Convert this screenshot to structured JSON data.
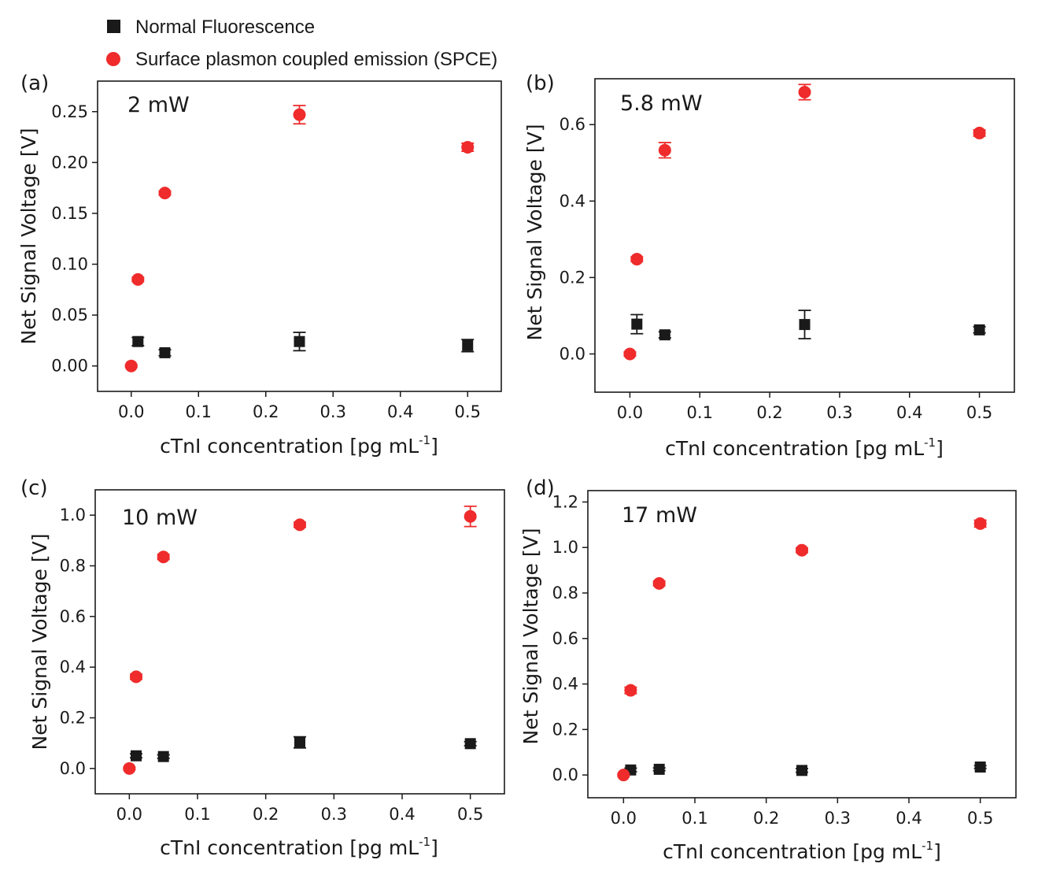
{
  "legend": {
    "items": [
      {
        "label": "Normal Fluorescence",
        "marker": "square",
        "color": "#1a1a1a"
      },
      {
        "label": "Surface plasmon coupled emission (SPCE)",
        "marker": "circle",
        "color": "#ef2b2b"
      }
    ]
  },
  "colors": {
    "normal": "#1a1a1a",
    "spce": "#ef2b2b"
  },
  "chart_data": [
    {
      "type": "scatter",
      "panel": "(a)",
      "annotation": "2 mW",
      "xlabel": "cTnI concentration [pg mL",
      "xlabel_sup": "-1",
      "xlabel_close": "]",
      "ylabel": "Net Signal Voltage [V]",
      "xlim": [
        -0.05,
        0.55
      ],
      "ylim": [
        -0.025,
        0.28
      ],
      "xticks": [
        0.0,
        0.1,
        0.2,
        0.3,
        0.4,
        0.5
      ],
      "xtick_labels": [
        "0.0",
        "0.1",
        "0.2",
        "0.3",
        "0.4",
        "0.5"
      ],
      "yticks": [
        0.0,
        0.05,
        0.1,
        0.15,
        0.2,
        0.25
      ],
      "ytick_labels": [
        "0.00",
        "0.05",
        "0.10",
        "0.15",
        "0.20",
        "0.25"
      ],
      "series": [
        {
          "name": "Normal Fluorescence",
          "x": [
            0.01,
            0.05,
            0.25,
            0.5
          ],
          "y": [
            0.024,
            0.013,
            0.024,
            0.02
          ],
          "err": [
            0.004,
            0.003,
            0.009,
            0.006
          ]
        },
        {
          "name": "Surface plasmon coupled emission (SPCE)",
          "x": [
            0.0,
            0.01,
            0.05,
            0.25,
            0.5
          ],
          "y": [
            0.0,
            0.085,
            0.17,
            0.247,
            0.215
          ],
          "err": [
            0.001,
            0.002,
            0.002,
            0.009,
            0.004
          ]
        }
      ]
    },
    {
      "type": "scatter",
      "panel": "(b)",
      "annotation": "5.8 mW",
      "xlabel": "cTnI concentration [pg mL",
      "xlabel_sup": "-1",
      "xlabel_close": "]",
      "ylabel": "Net Signal Voltage [V]",
      "xlim": [
        -0.05,
        0.55
      ],
      "ylim": [
        -0.1,
        0.72
      ],
      "xticks": [
        0.0,
        0.1,
        0.2,
        0.3,
        0.4,
        0.5
      ],
      "xtick_labels": [
        "0.0",
        "0.1",
        "0.2",
        "0.3",
        "0.4",
        "0.5"
      ],
      "yticks": [
        0.0,
        0.2,
        0.4,
        0.6
      ],
      "ytick_labels": [
        "0.0",
        "0.2",
        "0.4",
        "0.6"
      ],
      "series": [
        {
          "name": "Normal Fluorescence",
          "x": [
            0.01,
            0.05,
            0.25,
            0.5
          ],
          "y": [
            0.078,
            0.05,
            0.077,
            0.063
          ],
          "err": [
            0.025,
            0.008,
            0.037,
            0.008
          ]
        },
        {
          "name": "Surface plasmon coupled emission (SPCE)",
          "x": [
            0.0,
            0.01,
            0.05,
            0.25,
            0.5
          ],
          "y": [
            0.0,
            0.248,
            0.533,
            0.685,
            0.578
          ],
          "err": [
            0.005,
            0.006,
            0.02,
            0.02,
            0.008
          ]
        }
      ]
    },
    {
      "type": "scatter",
      "panel": "(c)",
      "annotation": "10 mW",
      "xlabel": "cTnI concentration [pg mL",
      "xlabel_sup": "-1",
      "xlabel_close": "]",
      "ylabel": "Net Signal Voltage [V]",
      "xlim": [
        -0.05,
        0.55
      ],
      "ylim": [
        -0.1,
        1.1
      ],
      "xticks": [
        0.0,
        0.1,
        0.2,
        0.3,
        0.4,
        0.5
      ],
      "xtick_labels": [
        "0.0",
        "0.1",
        "0.2",
        "0.3",
        "0.4",
        "0.5"
      ],
      "yticks": [
        0.0,
        0.2,
        0.4,
        0.6,
        0.8,
        1.0
      ],
      "ytick_labels": [
        "0.0",
        "0.2",
        "0.4",
        "0.6",
        "0.8",
        "1.0"
      ],
      "series": [
        {
          "name": "Normal Fluorescence",
          "x": [
            0.01,
            0.05,
            0.25,
            0.5
          ],
          "y": [
            0.05,
            0.047,
            0.103,
            0.098
          ],
          "err": [
            0.008,
            0.007,
            0.022,
            0.008
          ]
        },
        {
          "name": "Surface plasmon coupled emission (SPCE)",
          "x": [
            0.0,
            0.01,
            0.05,
            0.25,
            0.5
          ],
          "y": [
            0.0,
            0.362,
            0.835,
            0.962,
            0.995
          ],
          "err": [
            0.005,
            0.01,
            0.01,
            0.01,
            0.04
          ]
        }
      ]
    },
    {
      "type": "scatter",
      "panel": "(d)",
      "annotation": "17 mW",
      "xlabel": "cTnI concentration [pg mL",
      "xlabel_sup": "-1",
      "xlabel_close": "]",
      "ylabel": "Net Signal Voltage [V]",
      "xlim": [
        -0.05,
        0.55
      ],
      "ylim": [
        -0.1,
        1.25
      ],
      "xticks": [
        0.0,
        0.1,
        0.2,
        0.3,
        0.4,
        0.5
      ],
      "xtick_labels": [
        "0.0",
        "0.1",
        "0.2",
        "0.3",
        "0.4",
        "0.5"
      ],
      "yticks": [
        0.0,
        0.2,
        0.4,
        0.6,
        0.8,
        1.0,
        1.2
      ],
      "ytick_labels": [
        "0.0",
        "0.2",
        "0.4",
        "0.6",
        "0.8",
        "1.0",
        "1.2"
      ],
      "series": [
        {
          "name": "Normal Fluorescence",
          "x": [
            0.01,
            0.05,
            0.25,
            0.5
          ],
          "y": [
            0.022,
            0.025,
            0.02,
            0.035
          ],
          "err": [
            0.008,
            0.006,
            0.008,
            0.006
          ]
        },
        {
          "name": "Surface plasmon coupled emission (SPCE)",
          "x": [
            0.0,
            0.01,
            0.05,
            0.25,
            0.5
          ],
          "y": [
            0.0,
            0.372,
            0.842,
            0.988,
            1.105
          ],
          "err": [
            0.005,
            0.014,
            0.01,
            0.01,
            0.015
          ]
        }
      ]
    }
  ]
}
